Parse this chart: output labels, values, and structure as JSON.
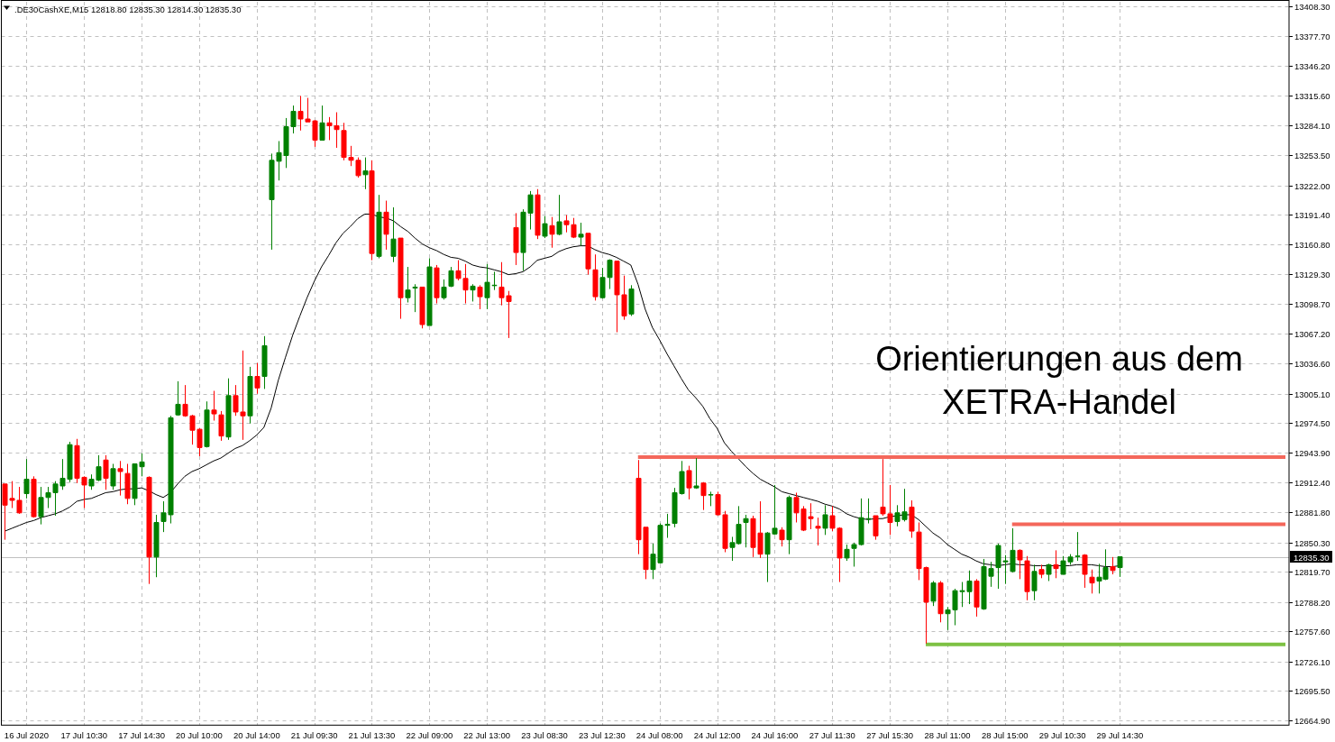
{
  "chart_data": {
    "type": "candlestick",
    "title": ".DE30CashXE,M15  12818.80 12835.30 12814.30 12835.30",
    "categories": [
      null,
      null,
      null,
      "16 Jul 2020",
      null,
      null,
      null,
      null,
      null,
      null,
      null,
      "17 Jul 10:30",
      null,
      null,
      null,
      null,
      null,
      null,
      null,
      "17 Jul 14:30",
      null,
      null,
      null,
      null,
      null,
      null,
      null,
      "20 Jul 10:00",
      null,
      null,
      null,
      null,
      null,
      null,
      null,
      "20 Jul 14:00",
      null,
      null,
      null,
      null,
      null,
      null,
      null,
      "21 Jul 09:30",
      null,
      null,
      null,
      null,
      null,
      null,
      null,
      "21 Jul 13:30",
      null,
      null,
      null,
      null,
      null,
      null,
      null,
      "22 Jul 09:00",
      null,
      null,
      null,
      null,
      null,
      null,
      null,
      "22 Jul 13:00",
      null,
      null,
      null,
      null,
      null,
      null,
      null,
      "23 Jul 08:30",
      null,
      null,
      null,
      null,
      null,
      null,
      null,
      "23 Jul 12:30",
      null,
      null,
      null,
      null,
      null,
      null,
      null,
      "24 Jul 08:00",
      null,
      null,
      null,
      null,
      null,
      null,
      null,
      "24 Jul 12:00",
      null,
      null,
      null,
      null,
      null,
      null,
      null,
      "24 Jul 16:00",
      null,
      null,
      null,
      null,
      null,
      null,
      null,
      "27 Jul 11:30",
      null,
      null,
      null,
      null,
      null,
      null,
      null,
      "27 Jul 15:30",
      null,
      null,
      null,
      null,
      null,
      null,
      null,
      "28 Jul 11:00",
      null,
      null,
      null,
      null,
      null,
      null,
      null,
      "28 Jul 15:00",
      null,
      null,
      null,
      null,
      null,
      null,
      null,
      "29 Jul 10:30",
      null,
      null,
      null,
      null,
      null,
      null,
      null,
      "29 Jul 14:30",
      null,
      null,
      null,
      null,
      null,
      null,
      null,
      null,
      null,
      null,
      null,
      null,
      null,
      null,
      null,
      null,
      null,
      null,
      null,
      null,
      null,
      null,
      null
    ],
    "ohlc": [
      [
        12911,
        12911,
        12853,
        12889
      ],
      [
        12896,
        12914,
        12886,
        12894
      ],
      [
        12894,
        12908,
        12880,
        12881
      ],
      [
        12901,
        12937,
        12896,
        12916
      ],
      [
        12916,
        12919,
        12876,
        12877
      ],
      [
        12877,
        12908,
        12869,
        12897
      ],
      [
        12897,
        12908,
        12886,
        12902
      ],
      [
        12902,
        12914,
        12878,
        12911
      ],
      [
        12909,
        12937,
        12905,
        12917
      ],
      [
        12916,
        12955,
        12913,
        12952
      ],
      [
        12951,
        12958,
        12912,
        12917
      ],
      [
        12918,
        12919,
        12886,
        12910
      ],
      [
        12909,
        12921,
        12905,
        12916
      ],
      [
        12915,
        12941,
        12914,
        12929
      ],
      [
        12936,
        12941,
        12905,
        12917
      ],
      [
        12909,
        12932,
        12905,
        12927
      ],
      [
        12927,
        12935,
        12899,
        12924
      ],
      [
        12922,
        12932,
        12890,
        12896
      ],
      [
        12896,
        12932,
        12889,
        12932
      ],
      [
        12929,
        12943,
        12919,
        12934
      ],
      [
        12918,
        12919,
        12807,
        12835
      ],
      [
        12835,
        12879,
        12814,
        12871
      ],
      [
        12872,
        12893,
        12861,
        12881
      ],
      [
        12879,
        12982,
        12870,
        12980
      ],
      [
        12983,
        13018,
        12982,
        12994
      ],
      [
        12994,
        13014,
        12981,
        12982
      ],
      [
        12982,
        12983,
        12952,
        12967
      ],
      [
        12968,
        12969,
        12940,
        12949
      ],
      [
        12950,
        12997,
        12949,
        12988
      ],
      [
        12988,
        13008,
        12977,
        12984
      ],
      [
        12983,
        12987,
        12956,
        12961
      ],
      [
        12960,
        13021,
        12957,
        13003
      ],
      [
        13003,
        13014,
        12982,
        12986
      ],
      [
        12986,
        13050,
        12957,
        12982
      ],
      [
        12982,
        13033,
        12974,
        13023
      ],
      [
        13023,
        13037,
        13005,
        13011
      ],
      [
        13023,
        13065,
        13010,
        13055
      ],
      [
        13207,
        13255,
        13155,
        13248
      ],
      [
        13247,
        13268,
        13227,
        13256
      ],
      [
        13253,
        13292,
        13240,
        13283
      ],
      [
        13283,
        13305,
        13276,
        13299
      ],
      [
        13299,
        13315,
        13279,
        13291
      ],
      [
        13291,
        13313,
        13288,
        13288
      ],
      [
        13289,
        13290,
        13262,
        13269
      ],
      [
        13269,
        13305,
        13269,
        13287
      ],
      [
        13287,
        13293,
        13269,
        13284
      ],
      [
        13284,
        13298,
        13261,
        13280
      ],
      [
        13279,
        13287,
        13248,
        13251
      ],
      [
        13251,
        13263,
        13242,
        13248
      ],
      [
        13248,
        13251,
        13230,
        13232
      ],
      [
        13233,
        13251,
        13218,
        13237
      ],
      [
        13237,
        13248,
        13144,
        13151
      ],
      [
        13148,
        13212,
        13146,
        13194
      ],
      [
        13194,
        13206,
        13155,
        13171
      ],
      [
        13148,
        13199,
        13142,
        13166
      ],
      [
        13167,
        13167,
        13083,
        13105
      ],
      [
        13105,
        13137,
        13100,
        13113
      ],
      [
        13115,
        13119,
        13090,
        13116
      ],
      [
        13116,
        13116,
        13073,
        13077
      ],
      [
        13076,
        13146,
        13076,
        13137
      ],
      [
        13136,
        13139,
        13099,
        13105
      ],
      [
        13105,
        13124,
        13103,
        13116
      ],
      [
        13117,
        13137,
        13116,
        13133
      ],
      [
        13133,
        13144,
        13123,
        13125
      ],
      [
        13125,
        13140,
        13099,
        13113
      ],
      [
        13113,
        13119,
        13101,
        13117
      ],
      [
        13116,
        13118,
        13093,
        13106
      ],
      [
        13105,
        13140,
        13093,
        13121
      ],
      [
        13118,
        13132,
        13113,
        13118
      ],
      [
        13116,
        13142,
        13097,
        13105
      ],
      [
        13107,
        13112,
        13063,
        13101
      ],
      [
        13178,
        13193,
        13139,
        13152
      ],
      [
        13152,
        13197,
        13133,
        13194
      ],
      [
        13193,
        13216,
        13176,
        13212
      ],
      [
        13212,
        13218,
        13166,
        13170
      ],
      [
        13169,
        13190,
        13167,
        13182
      ],
      [
        13180,
        13189,
        13157,
        13171
      ],
      [
        13171,
        13212,
        13170,
        13184
      ],
      [
        13185,
        13191,
        13173,
        13181
      ],
      [
        13181,
        13188,
        13167,
        13168
      ],
      [
        13168,
        13183,
        13159,
        13171
      ],
      [
        13172,
        13172,
        13129,
        13135
      ],
      [
        13134,
        13150,
        13102,
        13106
      ],
      [
        13105,
        13136,
        13104,
        13126
      ],
      [
        13126,
        13145,
        13114,
        13144
      ],
      [
        13143,
        13143,
        13069,
        13108
      ],
      [
        13108,
        13128,
        13082,
        13086
      ],
      [
        13088,
        13118,
        13086,
        13114
      ],
      [
        12917,
        12936,
        12838,
        12853
      ],
      [
        12866,
        12866,
        12812,
        12822
      ],
      [
        12822,
        12849,
        12812,
        12838
      ],
      [
        12829,
        12870,
        12828,
        12868
      ],
      [
        12868,
        12880,
        12855,
        12869
      ],
      [
        12870,
        12907,
        12866,
        12902
      ],
      [
        12901,
        12935,
        12900,
        12924
      ],
      [
        12925,
        12930,
        12895,
        12907
      ],
      [
        12907,
        12938,
        12906,
        12909
      ],
      [
        12912,
        12913,
        12884,
        12899
      ],
      [
        12900,
        12903,
        12888,
        12900
      ],
      [
        12900,
        12903,
        12878,
        12879
      ],
      [
        12879,
        12883,
        12840,
        12844
      ],
      [
        12845,
        12856,
        12831,
        12850
      ],
      [
        12849,
        12888,
        12848,
        12869
      ],
      [
        12871,
        12879,
        12845,
        12875
      ],
      [
        12875,
        12878,
        12835,
        12845
      ],
      [
        12860,
        12893,
        12834,
        12838
      ],
      [
        12838,
        12861,
        12809,
        12860
      ],
      [
        12859,
        12910,
        12858,
        12865
      ],
      [
        12863,
        12866,
        12846,
        12853
      ],
      [
        12853,
        12899,
        12838,
        12897
      ],
      [
        12897,
        12902,
        12871,
        12881
      ],
      [
        12885,
        12888,
        12862,
        12863
      ],
      [
        12877,
        12891,
        12864,
        12875
      ],
      [
        12867,
        12876,
        12847,
        12865
      ],
      [
        12865,
        12889,
        12858,
        12879
      ],
      [
        12878,
        12888,
        12862,
        12865
      ],
      [
        12865,
        12866,
        12809,
        12834
      ],
      [
        12834,
        12848,
        12831,
        12843
      ],
      [
        12844,
        12850,
        12825,
        12848
      ],
      [
        12848,
        12896,
        12847,
        12876
      ],
      [
        12875,
        12896,
        12870,
        12875
      ],
      [
        12878,
        12878,
        12853,
        12857
      ],
      [
        12887,
        12937,
        12878,
        12880
      ],
      [
        12880,
        12910,
        12858,
        12871
      ],
      [
        12872,
        12889,
        12867,
        12881
      ],
      [
        12874,
        12906,
        12872,
        12882
      ],
      [
        12887,
        12894,
        12855,
        12862
      ],
      [
        12861,
        12871,
        12811,
        12823
      ],
      [
        12824,
        12825,
        12745,
        12788
      ],
      [
        12789,
        12810,
        12784,
        12808
      ],
      [
        12808,
        12810,
        12767,
        12776
      ],
      [
        12776,
        12783,
        12759,
        12780
      ],
      [
        12780,
        12802,
        12764,
        12800
      ],
      [
        12799,
        12809,
        12783,
        12800
      ],
      [
        12799,
        12821,
        12786,
        12810
      ],
      [
        12810,
        12812,
        12773,
        12783
      ],
      [
        12781,
        12833,
        12780,
        12825
      ],
      [
        12815,
        12830,
        12804,
        12823
      ],
      [
        12824,
        12849,
        12802,
        12847
      ],
      [
        12830,
        12837,
        12807,
        12831
      ],
      [
        12820,
        12865,
        12819,
        12842
      ],
      [
        12842,
        12843,
        12812,
        12832
      ],
      [
        12831,
        12836,
        12790,
        12799
      ],
      [
        12800,
        12827,
        12790,
        12820
      ],
      [
        12822,
        12827,
        12813,
        12817
      ],
      [
        12817,
        12828,
        12810,
        12827
      ],
      [
        12827,
        12842,
        12813,
        12823
      ],
      [
        12817,
        12836,
        12817,
        12831
      ],
      [
        12830,
        12838,
        12827,
        12835
      ],
      [
        12836,
        12861,
        12831,
        12836
      ],
      [
        12837,
        12838,
        12803,
        12817
      ],
      [
        12814,
        12822,
        12797,
        12808
      ],
      [
        12810,
        12828,
        12797,
        12814
      ],
      [
        12812,
        12843,
        12811,
        12824
      ],
      [
        12825,
        12835,
        12817,
        12821
      ],
      [
        12824,
        12835.3,
        12814.3,
        12835.3
      ],
      null,
      null,
      null,
      null,
      null,
      null,
      null,
      null,
      null,
      null,
      null,
      null,
      null,
      null,
      null,
      null,
      null,
      null,
      null,
      null,
      null,
      null,
      null
    ],
    "colors": [
      "#ff0000",
      "#ff0000",
      "#ff0000",
      "#008000",
      "#ff0000",
      "#008000",
      "#008000",
      "#008000",
      "#008000",
      "#008000",
      "#ff0000",
      "#ff0000",
      "#008000",
      "#008000",
      "#ff0000",
      "#008000",
      "#ff0000",
      "#ff0000",
      "#008000",
      "#008000",
      "#ff0000",
      "#008000",
      "#008000",
      "#008000",
      "#008000",
      "#ff0000",
      "#ff0000",
      "#ff0000",
      "#008000",
      "#ff0000",
      "#ff0000",
      "#008000",
      "#ff0000",
      "#ff0000",
      "#008000",
      "#ff0000",
      "#008000",
      "#008000",
      "#008000",
      "#008000",
      "#008000",
      "#ff0000",
      "#ff0000",
      "#ff0000",
      "#008000",
      "#ff0000",
      "#ff0000",
      "#ff0000",
      "#ff0000",
      "#ff0000",
      "#008000",
      "#ff0000",
      "#008000",
      "#ff0000",
      "#008000",
      "#ff0000",
      "#008000",
      "#008000",
      "#ff0000",
      "#008000",
      "#ff0000",
      "#008000",
      "#008000",
      "#ff0000",
      "#ff0000",
      "#008000",
      "#ff0000",
      "#008000",
      "#008000",
      "#ff0000",
      "#ff0000",
      "#ff0000",
      "#008000",
      "#008000",
      "#ff0000",
      "#008000",
      "#ff0000",
      "#008000",
      "#ff0000",
      "#ff0000",
      "#008000",
      "#ff0000",
      "#ff0000",
      "#008000",
      "#008000",
      "#ff0000",
      "#ff0000",
      "#008000",
      "#ff0000",
      "#ff0000",
      "#008000",
      "#008000",
      "#008000",
      "#008000",
      "#008000",
      "#ff0000",
      "#008000",
      "#ff0000",
      "#008000",
      "#ff0000",
      "#ff0000",
      "#008000",
      "#008000",
      "#008000",
      "#ff0000",
      "#ff0000",
      "#008000",
      "#008000",
      "#ff0000",
      "#008000",
      "#ff0000",
      "#ff0000",
      "#ff0000",
      "#ff0000",
      "#008000",
      "#ff0000",
      "#ff0000",
      "#008000",
      "#008000",
      "#008000",
      "#008000",
      "#ff0000",
      "#ff0000",
      "#ff0000",
      "#008000",
      "#008000",
      "#ff0000",
      "#ff0000",
      "#ff0000",
      "#008000",
      "#ff0000",
      "#008000",
      "#008000",
      "#008000",
      "#008000",
      "#ff0000",
      "#008000",
      "#008000",
      "#008000",
      "#008000",
      "#008000",
      "#ff0000",
      "#ff0000",
      "#008000",
      "#ff0000",
      "#008000",
      "#ff0000",
      "#008000",
      "#008000",
      "#008000",
      "#ff0000",
      "#ff0000",
      "#008000",
      "#008000",
      "#ff0000",
      "#008000",
      null,
      null,
      null,
      null,
      null,
      null,
      null,
      null,
      null,
      null,
      null,
      null,
      null,
      null,
      null,
      null,
      null,
      null,
      null,
      null,
      null,
      null,
      null
    ],
    "series": [
      {
        "type": "line",
        "color": "#000000",
        "values": [
          12862,
          12865,
          12868,
          12871,
          12873,
          12876,
          12878,
          12880,
          12883,
          12887,
          12893,
          12895,
          12896,
          12899,
          12902,
          12903,
          12905,
          12906,
          12906,
          12907,
          12904,
          12900,
          12897,
          12902,
          12911,
          12919,
          12924,
          12927,
          12931,
          12935,
          12938,
          12943,
          12948,
          12951,
          12956,
          12962,
          12970,
          12990,
          13019,
          13043,
          13066,
          13086,
          13105,
          13122,
          13137,
          13149,
          13162,
          13172,
          13179,
          13187,
          13192,
          13192,
          13189,
          13188,
          13185,
          13179,
          13174,
          13167,
          13161,
          13157,
          13154,
          13150,
          13147,
          13146,
          13143,
          13139,
          13137,
          13136,
          13134,
          13132,
          13129,
          13130,
          13132,
          13137,
          13144,
          13146,
          13148,
          13153,
          13156,
          13158,
          13159,
          13159,
          13155,
          13152,
          13150,
          13147,
          13143,
          13139,
          13119,
          13093,
          13074,
          13061,
          13047,
          13034,
          13021,
          13009,
          13001,
          12992,
          12979,
          12969,
          12954,
          12945,
          12937,
          12929,
          12922,
          12916,
          12912,
          12908,
          12903,
          12901,
          12899,
          12897,
          12895,
          12893,
          12890,
          12888,
          12885,
          12880,
          12877,
          12875,
          12874,
          12875,
          12875,
          12877,
          12878,
          12879,
          12879,
          12874,
          12867,
          12860,
          12855,
          12848,
          12843,
          12838,
          12835,
          12831,
          12828,
          12827,
          12826,
          12827,
          12828,
          12827,
          12827,
          12826,
          12826,
          12826,
          12826,
          12826,
          12826,
          12827,
          12827,
          12827,
          12826,
          12825,
          12825,
          12826,
          null,
          null,
          null,
          null,
          null,
          null,
          null,
          null,
          null,
          null,
          null,
          null,
          null,
          null,
          null,
          null,
          null,
          null,
          null,
          null,
          null,
          null,
          null
        ]
      },
      {
        "type": "line",
        "color": "#f4675b",
        "values": [
          null,
          null,
          null,
          null,
          null,
          null,
          null,
          null,
          null,
          null,
          null,
          null,
          null,
          null,
          null,
          null,
          null,
          null,
          null,
          null,
          null,
          null,
          null,
          null,
          null,
          null,
          null,
          null,
          null,
          null,
          null,
          null,
          null,
          null,
          null,
          null,
          null,
          null,
          null,
          null,
          null,
          null,
          null,
          null,
          null,
          null,
          null,
          null,
          null,
          null,
          null,
          null,
          null,
          null,
          null,
          null,
          null,
          null,
          null,
          null,
          null,
          null,
          null,
          null,
          null,
          null,
          null,
          null,
          null,
          null,
          null,
          null,
          null,
          null,
          null,
          null,
          null,
          null,
          null,
          null,
          null,
          null,
          null,
          null,
          null,
          null,
          null,
          null,
          12939,
          12939,
          12939,
          12939,
          12939,
          12939,
          12939,
          12939,
          12939,
          12939,
          12939,
          12939,
          12939,
          12939,
          12939,
          12939,
          12939,
          12939,
          12939,
          12939,
          12939,
          12939,
          12939,
          12939,
          12939,
          12939,
          12939,
          12939,
          12939,
          12939,
          12939,
          12939,
          12939,
          12939,
          12939,
          12939,
          12939,
          12939,
          12939,
          12939,
          12939,
          12939,
          12939,
          12939,
          12939,
          12939,
          12939,
          12939,
          12939,
          12939,
          12939,
          12939,
          12939,
          12939,
          12939,
          12939,
          12939,
          12939,
          12939,
          12939,
          12939,
          12939,
          12939,
          12939,
          12939,
          12939,
          12939,
          12939,
          12939,
          12939,
          12939,
          12939,
          12939,
          12939,
          12939,
          12939,
          12939,
          12939,
          12939,
          12939,
          12939,
          12939,
          12939,
          12939,
          12939,
          12939,
          12939,
          12939,
          12939,
          12939,
          12939
        ]
      },
      {
        "type": "line",
        "color": "#f4675b",
        "values": [
          null,
          null,
          null,
          null,
          null,
          null,
          null,
          null,
          null,
          null,
          null,
          null,
          null,
          null,
          null,
          null,
          null,
          null,
          null,
          null,
          null,
          null,
          null,
          null,
          null,
          null,
          null,
          null,
          null,
          null,
          null,
          null,
          null,
          null,
          null,
          null,
          null,
          null,
          null,
          null,
          null,
          null,
          null,
          null,
          null,
          null,
          null,
          null,
          null,
          null,
          null,
          null,
          null,
          null,
          null,
          null,
          null,
          null,
          null,
          null,
          null,
          null,
          null,
          null,
          null,
          null,
          null,
          null,
          null,
          null,
          null,
          null,
          null,
          null,
          null,
          null,
          null,
          null,
          null,
          null,
          null,
          null,
          null,
          null,
          null,
          null,
          null,
          null,
          null,
          null,
          null,
          null,
          null,
          null,
          null,
          null,
          null,
          null,
          null,
          null,
          null,
          null,
          null,
          null,
          null,
          null,
          null,
          null,
          null,
          null,
          null,
          null,
          null,
          null,
          null,
          null,
          null,
          null,
          null,
          null,
          null,
          null,
          null,
          null,
          null,
          null,
          null,
          null,
          null,
          null,
          null,
          null,
          null,
          null,
          null,
          null,
          null,
          null,
          null,
          null,
          12869,
          12869,
          12869,
          12869,
          12869,
          12869,
          12869,
          12869,
          12869,
          12869,
          12869,
          12869,
          12869,
          12869,
          12869,
          12869,
          12869,
          12869,
          12869,
          12869,
          12869,
          12869,
          12869,
          12869,
          12869,
          12869,
          12869,
          12869,
          12869,
          12869,
          12869,
          12869,
          12869,
          12869,
          12869,
          12869,
          12869,
          12869,
          12869
        ]
      },
      {
        "type": "line",
        "color": "#7dc143",
        "values": [
          null,
          null,
          null,
          null,
          null,
          null,
          null,
          null,
          null,
          null,
          null,
          null,
          null,
          null,
          null,
          null,
          null,
          null,
          null,
          null,
          null,
          null,
          null,
          null,
          null,
          null,
          null,
          null,
          null,
          null,
          null,
          null,
          null,
          null,
          null,
          null,
          null,
          null,
          null,
          null,
          null,
          null,
          null,
          null,
          null,
          null,
          null,
          null,
          null,
          null,
          null,
          null,
          null,
          null,
          null,
          null,
          null,
          null,
          null,
          null,
          null,
          null,
          null,
          null,
          null,
          null,
          null,
          null,
          null,
          null,
          null,
          null,
          null,
          null,
          null,
          null,
          null,
          null,
          null,
          null,
          null,
          null,
          null,
          null,
          null,
          null,
          null,
          null,
          null,
          null,
          null,
          null,
          null,
          null,
          null,
          null,
          null,
          null,
          null,
          null,
          null,
          null,
          null,
          null,
          null,
          null,
          null,
          null,
          null,
          null,
          null,
          null,
          null,
          null,
          null,
          null,
          null,
          null,
          null,
          null,
          null,
          null,
          null,
          null,
          null,
          null,
          null,
          null,
          12744,
          12744,
          12744,
          12744,
          12744,
          12744,
          12744,
          12744,
          12744,
          12744,
          12744,
          12744,
          12744,
          12744,
          12744,
          12744,
          12744,
          12744,
          12744,
          12744,
          12744,
          12744,
          12744,
          12744,
          12744,
          12744,
          12744,
          12744,
          12744,
          12744,
          12744,
          12744,
          12744,
          12744,
          12744,
          12744,
          12744,
          12744,
          12744,
          12744,
          12744,
          12744,
          12744,
          12744,
          12744,
          12744,
          12744,
          12744,
          12744,
          12744,
          12744
        ]
      }
    ],
    "ylim": [
      12660,
      13413
    ],
    "yticks": [
      {
        "value": 13408.3,
        "label": "13408.30"
      },
      {
        "value": 13377.7,
        "label": "13377.70"
      },
      {
        "value": 13346.2,
        "label": "13346.20"
      },
      {
        "value": 13315.6,
        "label": "13315.60"
      },
      {
        "value": 13284.1,
        "label": "13284.10"
      },
      {
        "value": 13253.5,
        "label": "13253.50"
      },
      {
        "value": 13222,
        "label": "13222.00"
      },
      {
        "value": 13191.4,
        "label": "13191.40"
      },
      {
        "value": 13160.8,
        "label": "13160.80"
      },
      {
        "value": 13129.3,
        "label": "13129.30"
      },
      {
        "value": 13098.7,
        "label": "13098.70"
      },
      {
        "value": 13067.2,
        "label": "13067.20"
      },
      {
        "value": 13036.6,
        "label": "13036.60"
      },
      {
        "value": 13005.1,
        "label": "13005.10"
      },
      {
        "value": 12974.5,
        "label": "12974.50"
      },
      {
        "value": 12943.9,
        "label": "12943.90"
      },
      {
        "value": 12912.4,
        "label": "12912.40"
      },
      {
        "value": 12881.8,
        "label": "12881.80"
      },
      {
        "value": 12850.3,
        "label": "12850.30"
      },
      {
        "value": 12819.7,
        "label": "12819.70"
      },
      {
        "value": 12788.2,
        "label": "12788.20"
      },
      {
        "value": 12757.6,
        "label": "12757.60"
      },
      {
        "value": 12726.1,
        "label": "12726.10"
      },
      {
        "value": 12695.5,
        "label": "12695.50"
      },
      {
        "value": 12664.9,
        "label": "12664.90"
      }
    ],
    "grid": true,
    "ref_lines": [
      {
        "axis": "y",
        "value": 12835.3,
        "label": "12835.30",
        "color": "#c0c0c0"
      }
    ],
    "annotations": [
      "Orientierungen aus dem\nXETRA-Handel"
    ]
  }
}
